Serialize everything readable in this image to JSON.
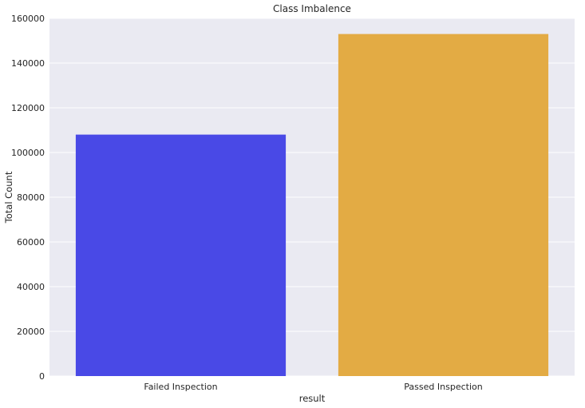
{
  "chart_data": {
    "type": "bar",
    "title": "Class Imbalence",
    "xlabel": "result",
    "ylabel": "Total Count",
    "categories": [
      "Failed Inspection",
      "Passed Inspection"
    ],
    "values": [
      108000,
      153000
    ],
    "ylim": [
      0,
      160000
    ],
    "yticks": [
      0,
      20000,
      40000,
      60000,
      80000,
      100000,
      120000,
      140000,
      160000
    ],
    "ytick_labels": [
      "0",
      "20000",
      "40000",
      "60000",
      "80000",
      "100000",
      "120000",
      "140000",
      "160000"
    ],
    "grid": true,
    "colors": {
      "background": "#eaeaf2",
      "grid": "#ffffff",
      "bars": [
        "#4949e6",
        "#e3ab44"
      ]
    }
  }
}
